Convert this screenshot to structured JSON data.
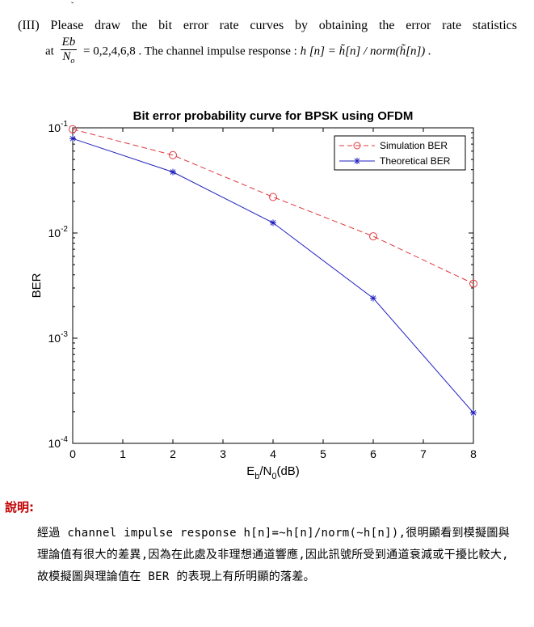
{
  "header_mark": "ˇ",
  "question": {
    "label": "(III)",
    "line1": "Please draw the bit error rate curves by obtaining the error rate statistics",
    "at_word": "at",
    "frac_num": "Eb",
    "frac_den": "N",
    "frac_den_sub": "o",
    "values": "= 0,2,4,6,8 . The channel impulse response :",
    "formula": "h [n] = h̃[n] / norm(h̃[n]) ."
  },
  "chart_data": {
    "type": "line",
    "title": "Bit error probability curve for BPSK using OFDM",
    "xlabel": "Eb/N0(dB)",
    "ylabel": "BER",
    "x": [
      0,
      2,
      4,
      6,
      8
    ],
    "xticks": [
      "0",
      "1",
      "2",
      "3",
      "4",
      "5",
      "6",
      "7",
      "8"
    ],
    "yticks": [
      "10-1",
      "10-2",
      "10-3",
      "10-4"
    ],
    "xlim": [
      0,
      8
    ],
    "ylim": [
      0.0001,
      0.1
    ],
    "yscale": "log",
    "grid": false,
    "legend_position": "top-right",
    "series": [
      {
        "name": "Simulation BER",
        "values": [
          0.097,
          0.055,
          0.022,
          0.0093,
          0.0033
        ],
        "color": "#e0393e",
        "style": "dashed",
        "marker": "circle"
      },
      {
        "name": "Theoretical BER",
        "values": [
          0.079,
          0.038,
          0.0125,
          0.0024,
          0.000195
        ],
        "color": "#1f1fbf",
        "style": "solid",
        "marker": "star"
      }
    ]
  },
  "explanation": {
    "title": "說明:",
    "body": "經過 channel impulse response h[n]=~h[n]/norm(~h[n]),很明顯看到模擬圖與理論值有很大的差異,因為在此處及非理想通道響應,因此訊號所受到通道衰減或干擾比較大,故模擬圖與理論值在 BER 的表現上有所明顯的落差。"
  }
}
